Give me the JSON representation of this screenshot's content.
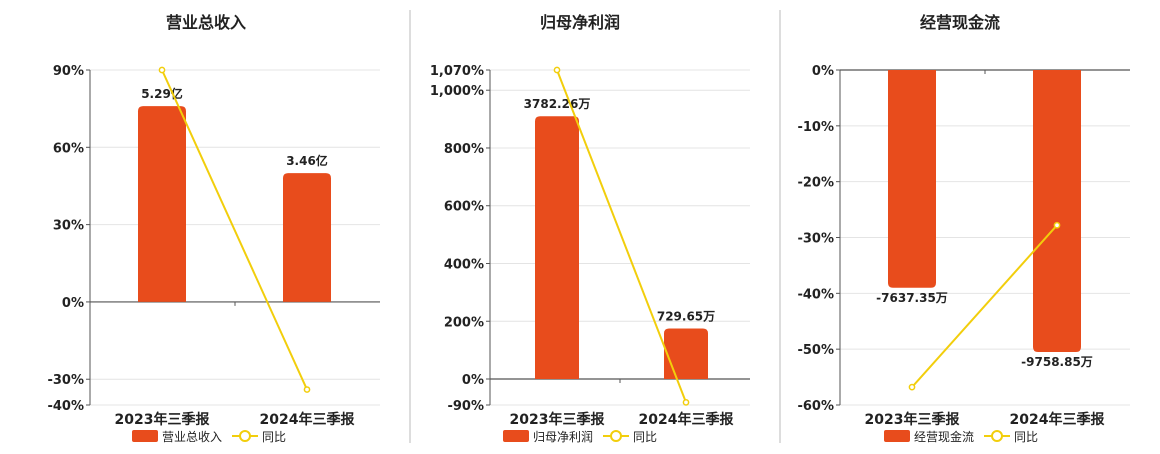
{
  "legend_line_label": "同比",
  "colors": {
    "bar": "#E84C1C",
    "line": "#F2CE0C",
    "grid": "#E4E4E4",
    "axis": "#555555",
    "divider": "#BBBBBB",
    "text": "#222222"
  },
  "chart_data": [
    {
      "type": "bar",
      "title": "营业总收入",
      "categories": [
        "2023年三季报",
        "2024年三季报"
      ],
      "bar_labels": [
        "5.29亿",
        "3.46亿"
      ],
      "series": [
        {
          "name": "营业总收入",
          "type": "bar",
          "values": [
            76,
            50
          ]
        },
        {
          "name": "同比",
          "type": "line",
          "values": [
            90,
            -34
          ]
        }
      ],
      "yticks": [
        "90%",
        "60%",
        "30%",
        "0%",
        "-30%",
        "-40%"
      ],
      "ytick_values": [
        90,
        60,
        30,
        0,
        -30,
        -40
      ],
      "ylim": [
        -40,
        90
      ],
      "grid": true,
      "legend": "bottom-center"
    },
    {
      "type": "bar",
      "title": "归母净利润",
      "categories": [
        "2023年三季报",
        "2024年三季报"
      ],
      "bar_labels": [
        "3782.26万",
        "729.65万"
      ],
      "series": [
        {
          "name": "归母净利润",
          "type": "bar",
          "values": [
            910,
            175
          ]
        },
        {
          "name": "同比",
          "type": "line",
          "values": [
            1070,
            -81
          ]
        }
      ],
      "yticks": [
        "1,070%",
        "1,000%",
        "800%",
        "600%",
        "400%",
        "200%",
        "0%",
        "-90%"
      ],
      "ytick_values": [
        1070,
        1000,
        800,
        600,
        400,
        200,
        0,
        -90
      ],
      "ylim": [
        -90,
        1070
      ],
      "grid": true,
      "legend": "bottom-center"
    },
    {
      "type": "bar",
      "title": "经营现金流",
      "categories": [
        "2023年三季报",
        "2024年三季报"
      ],
      "bar_labels": [
        "-7637.35万",
        "-9758.85万"
      ],
      "series": [
        {
          "name": "经营现金流",
          "type": "bar",
          "values": [
            -39,
            -50.5
          ]
        },
        {
          "name": "同比",
          "type": "line",
          "values": [
            -56.8,
            -27.8
          ]
        }
      ],
      "yticks": [
        "0%",
        "-10%",
        "-20%",
        "-30%",
        "-40%",
        "-50%",
        "-60%"
      ],
      "ytick_values": [
        0,
        -10,
        -20,
        -30,
        -40,
        -50,
        -60
      ],
      "ylim": [
        -60,
        0
      ],
      "grid": true,
      "legend": "bottom-center"
    }
  ]
}
